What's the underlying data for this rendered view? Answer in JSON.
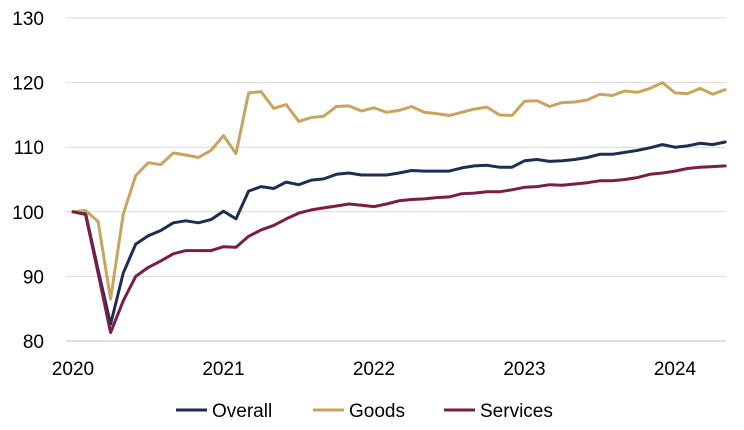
{
  "chart_data": {
    "type": "line",
    "title": "",
    "xlabel": "",
    "ylabel": "",
    "ylim": [
      80,
      130
    ],
    "yticks": [
      80,
      90,
      100,
      110,
      120,
      130
    ],
    "xlim": [
      2020.0,
      2024.4
    ],
    "xticks": [
      {
        "value": 2020,
        "label": "2020"
      },
      {
        "value": 2021,
        "label": "2021"
      },
      {
        "value": 2022,
        "label": "2022"
      },
      {
        "value": 2023,
        "label": "2023"
      },
      {
        "value": 2024,
        "label": "2024"
      }
    ],
    "grid": "horizontal",
    "legend_position": "bottom",
    "x": [
      2020.0,
      2020.0833,
      2020.1667,
      2020.25,
      2020.3333,
      2020.4167,
      2020.5,
      2020.5833,
      2020.6667,
      2020.75,
      2020.8333,
      2020.9167,
      2021.0,
      2021.0833,
      2021.1667,
      2021.25,
      2021.3333,
      2021.4167,
      2021.5,
      2021.5833,
      2021.6667,
      2021.75,
      2021.8333,
      2021.9167,
      2022.0,
      2022.0833,
      2022.1667,
      2022.25,
      2022.3333,
      2022.4167,
      2022.5,
      2022.5833,
      2022.6667,
      2022.75,
      2022.8333,
      2022.9167,
      2023.0,
      2023.0833,
      2023.1667,
      2023.25,
      2023.3333,
      2023.4167,
      2023.5,
      2023.5833,
      2023.6667,
      2023.75,
      2023.8333,
      2023.9167,
      2024.0,
      2024.0833,
      2024.1667,
      2024.25,
      2024.3333
    ],
    "series": [
      {
        "name": "Overall",
        "color": "#1f2d54",
        "values": [
          100,
          99.8,
          91,
          82.6,
          90.5,
          95,
          96.3,
          97.1,
          98.3,
          98.6,
          98.3,
          98.8,
          100.1,
          98.9,
          103.2,
          103.9,
          103.6,
          104.6,
          104.2,
          104.9,
          105.1,
          105.8,
          106,
          105.7,
          105.7,
          105.7,
          106,
          106.4,
          106.3,
          106.3,
          106.3,
          106.8,
          107.1,
          107.2,
          106.9,
          106.9,
          107.9,
          108.1,
          107.8,
          107.9,
          108.1,
          108.4,
          108.9,
          108.9,
          109.2,
          109.5,
          109.9,
          110.4,
          110,
          110.2,
          110.6,
          110.4,
          110.8
        ]
      },
      {
        "name": "Goods",
        "color": "#c9a45c",
        "values": [
          100,
          100.2,
          98.5,
          86.5,
          99.6,
          105.6,
          107.6,
          107.3,
          109.1,
          108.8,
          108.4,
          109.5,
          111.8,
          109,
          118.4,
          118.6,
          116,
          116.6,
          114,
          114.6,
          114.8,
          116.3,
          116.4,
          115.6,
          116.1,
          115.4,
          115.7,
          116.3,
          115.4,
          115.2,
          114.9,
          115.4,
          115.9,
          116.2,
          115,
          114.9,
          117.1,
          117.2,
          116.3,
          116.9,
          117,
          117.3,
          118.2,
          118,
          118.7,
          118.5,
          119.1,
          120,
          118.4,
          118.3,
          119.1,
          118.2,
          118.9
        ]
      },
      {
        "name": "Services",
        "color": "#7b1e45",
        "values": [
          100,
          99.6,
          90.5,
          81.3,
          86.2,
          90,
          91.4,
          92.4,
          93.5,
          94,
          94,
          94,
          94.6,
          94.5,
          96.2,
          97.2,
          97.9,
          98.9,
          99.8,
          100.3,
          100.6,
          100.9,
          101.2,
          101,
          100.8,
          101.2,
          101.7,
          101.9,
          102,
          102.2,
          102.3,
          102.8,
          102.9,
          103.1,
          103.1,
          103.4,
          103.8,
          103.9,
          104.2,
          104.1,
          104.3,
          104.5,
          104.8,
          104.8,
          105,
          105.3,
          105.8,
          106,
          106.3,
          106.7,
          106.9,
          107,
          107.1
        ]
      }
    ]
  }
}
